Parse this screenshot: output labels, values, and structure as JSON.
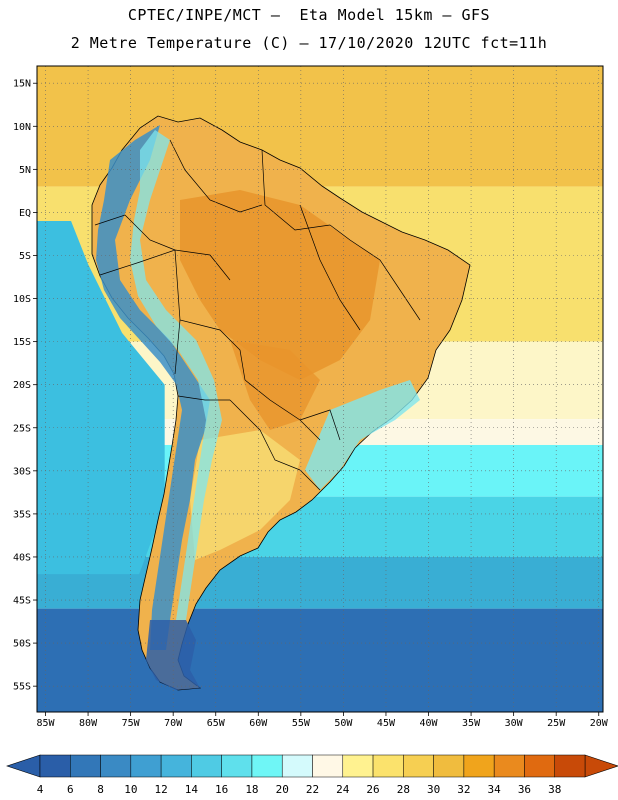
{
  "header": {
    "line1": "CPTEC/INPE/MCT –  Eta Model 15km – GFS",
    "line2": "2 Metre Temperature (C) – 17/10/2020 12UTC fct=11h"
  },
  "map": {
    "lat_labels": [
      "15N",
      "10N",
      "5N",
      "EQ",
      "5S",
      "10S",
      "15S",
      "20S",
      "25S",
      "30S",
      "35S",
      "40S",
      "45S",
      "50S",
      "55S"
    ],
    "lat_values": [
      15,
      10,
      5,
      0,
      -5,
      -10,
      -15,
      -20,
      -25,
      -30,
      -35,
      -40,
      -45,
      -50,
      -55
    ],
    "lon_labels": [
      "85W",
      "80W",
      "75W",
      "70W",
      "65W",
      "60W",
      "55W",
      "50W",
      "45W",
      "40W",
      "35W",
      "30W",
      "25W",
      "20W"
    ],
    "lon_values": [
      -85,
      -80,
      -75,
      -70,
      -65,
      -60,
      -55,
      -50,
      -45,
      -40,
      -35,
      -30,
      -25,
      -20
    ],
    "lon_range": [
      -86,
      -19.5
    ],
    "lat_range": [
      -58,
      17
    ],
    "gridlines": "dotted",
    "ocean_bands": [
      {
        "lat_from": 17,
        "lat_to": 3,
        "color": "#f2c24a"
      },
      {
        "lat_from": 3,
        "lat_to": -15,
        "color": "#f8e06e"
      },
      {
        "lat_from": -15,
        "lat_to": -24,
        "color": "#fdf6c8"
      },
      {
        "lat_from": -24,
        "lat_to": -27,
        "color": "#fdf8e4"
      },
      {
        "lat_from": -27,
        "lat_to": -33,
        "color": "#6af4f8"
      },
      {
        "lat_from": -33,
        "lat_to": -40,
        "color": "#4ad4e6"
      },
      {
        "lat_from": -40,
        "lat_to": -46,
        "color": "#39aed4"
      },
      {
        "lat_from": -46,
        "lat_to": -58,
        "color": "#2d6fb4"
      }
    ],
    "pacific_color": "#3cbfe0",
    "land_colors": {
      "warm": "#f0b24c",
      "hot": "#e8942c",
      "andes_cold": "#3b8fc8",
      "andes_mild": "#7fe6ee",
      "south": "#f6d870",
      "patagonia_cold": "#2d5fa8"
    }
  },
  "colorbar": {
    "labels": [
      "4",
      "6",
      "8",
      "10",
      "12",
      "14",
      "16",
      "18",
      "20",
      "22",
      "24",
      "26",
      "28",
      "30",
      "32",
      "34",
      "36",
      "38"
    ],
    "colors": [
      "#2a5ea8",
      "#3277b8",
      "#3a8ac4",
      "#3f9fd2",
      "#45b4dc",
      "#4fcbe4",
      "#5fe0ec",
      "#6ff6f6",
      "#d4fafc",
      "#fff8e6",
      "#fff290",
      "#fbe26c",
      "#f6cf52",
      "#f0bc3e",
      "#f0a41c",
      "#ea8a1e",
      "#e06a10",
      "#c84a08"
    ],
    "left_arrow_color": "#2a5ea8",
    "right_arrow_color": "#c84a08"
  }
}
